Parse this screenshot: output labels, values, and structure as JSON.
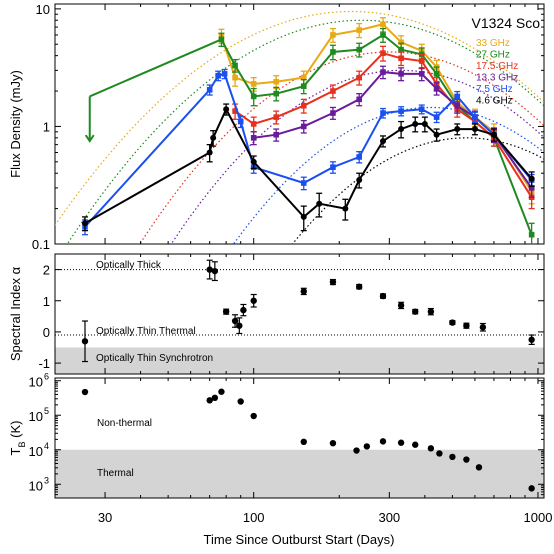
{
  "colors": {
    "33 GHz": "#e8a913",
    "27 GHz": "#1f8a1f",
    "17.5 GHz": "#e8301c",
    "13.3 GHz": "#6a1b9a",
    "7.5 GHz": "#1a4ff0",
    "4.6 GHz": "#000000",
    "shade": "#d4d4d4"
  },
  "chart_data": [
    {
      "type": "line",
      "title": "V1324 Sco",
      "ylabel": "Flux Density (mJy)",
      "xscale": "log",
      "yscale": "log",
      "xlim": [
        20,
        1050
      ],
      "ylim": [
        0.1,
        11
      ],
      "yticks": [
        0.1,
        1,
        10
      ],
      "ytick_labels": [
        "0.1",
        "1",
        "10"
      ],
      "legend_position": "top-right",
      "arrow": {
        "label": "",
        "x": 26.5,
        "y_from": 1.8,
        "y_to": 0.75,
        "series": "27 GHz"
      },
      "series": [
        {
          "name": "33 GHz",
          "x": [
            77,
            86,
            100,
            120,
            150,
            190,
            235,
            285,
            330,
            390,
            440,
            520,
            600,
            700,
            950
          ],
          "y": [
            5.9,
            2.6,
            2.3,
            2.4,
            2.6,
            6.0,
            6.6,
            7.4,
            5.2,
            4.4,
            3.2,
            1.6,
            1.2,
            0.9,
            0.28
          ],
          "err": [
            0.8,
            0.4,
            0.3,
            0.3,
            0.35,
            0.8,
            0.9,
            1.0,
            0.7,
            0.6,
            0.45,
            0.25,
            0.2,
            0.15,
            0.06
          ]
        },
        {
          "name": "27 GHz",
          "x": [
            26.5,
            77,
            86,
            100,
            120,
            150,
            190,
            235,
            285,
            330,
            390,
            440,
            520,
            600,
            700,
            950
          ],
          "y": [
            1.8,
            5.5,
            3.3,
            1.8,
            1.9,
            2.2,
            4.3,
            4.5,
            6.0,
            4.5,
            4.1,
            2.8,
            1.5,
            1.1,
            0.8,
            0.12
          ],
          "err": [
            0,
            0.7,
            0.4,
            0.3,
            0.25,
            0.3,
            0.6,
            0.6,
            0.8,
            0.6,
            0.55,
            0.4,
            0.2,
            0.15,
            0.12,
            0.03
          ]
        },
        {
          "name": "17.5 GHz",
          "x": [
            86,
            100,
            120,
            150,
            190,
            235,
            285,
            330,
            390,
            440,
            520,
            600,
            700,
            950
          ],
          "y": [
            1.35,
            1.05,
            1.2,
            1.5,
            2.0,
            2.6,
            4.2,
            3.8,
            3.6,
            2.3,
            1.4,
            1.1,
            0.8,
            0.25
          ],
          "err": [
            0.2,
            0.15,
            0.15,
            0.2,
            0.25,
            0.35,
            0.6,
            0.5,
            0.5,
            0.3,
            0.2,
            0.15,
            0.12,
            0.05
          ]
        },
        {
          "name": "13.3 GHz",
          "x": [
            100,
            120,
            150,
            190,
            235,
            285,
            330,
            390,
            440,
            520,
            600,
            700,
            950
          ],
          "y": [
            0.8,
            0.85,
            1.0,
            1.3,
            1.7,
            2.9,
            2.8,
            2.8,
            2.1,
            1.5,
            1.2,
            0.85,
            0.3
          ],
          "err": [
            0.1,
            0.1,
            0.12,
            0.15,
            0.2,
            0.35,
            0.35,
            0.35,
            0.25,
            0.2,
            0.15,
            0.12,
            0.05
          ]
        },
        {
          "name": "7.5 GHz",
          "x": [
            25.5,
            70,
            75,
            79,
            90,
            100,
            150,
            190,
            235,
            285,
            330,
            390,
            440,
            520,
            600,
            700,
            950
          ],
          "y": [
            0.14,
            2.05,
            2.7,
            2.8,
            1.1,
            0.45,
            0.33,
            0.45,
            0.55,
            1.3,
            1.35,
            1.4,
            1.2,
            1.8,
            1.2,
            0.85,
            0.35
          ],
          "err": [
            0.02,
            0.2,
            0.25,
            0.25,
            0.12,
            0.05,
            0.04,
            0.05,
            0.06,
            0.12,
            0.12,
            0.12,
            0.12,
            0.18,
            0.12,
            0.1,
            0.04
          ]
        },
        {
          "name": "4.6 GHz",
          "x": [
            25.5,
            70,
            72,
            80,
            100,
            150,
            170,
            210,
            235,
            285,
            330,
            370,
            400,
            440,
            520,
            600,
            700,
            950
          ],
          "y": [
            0.15,
            0.6,
            0.8,
            1.4,
            0.5,
            0.17,
            0.22,
            0.2,
            0.35,
            0.75,
            0.95,
            1.05,
            1.05,
            0.85,
            0.95,
            0.95,
            0.85,
            0.36
          ],
          "err": [
            0.02,
            0.1,
            0.12,
            0.15,
            0.06,
            0.04,
            0.05,
            0.04,
            0.05,
            0.08,
            0.15,
            0.15,
            0.15,
            0.1,
            0.1,
            0.1,
            0.1,
            0.05
          ]
        }
      ]
    },
    {
      "type": "scatter",
      "ylabel": "Spectral Index α",
      "xscale": "log",
      "xlim": [
        20,
        1050
      ],
      "ylim": [
        -1.35,
        2.5
      ],
      "yticks": [
        -1,
        0,
        1,
        2
      ],
      "ytick_labels": [
        "-1",
        "0",
        "1",
        "2"
      ],
      "annotations": [
        "Optically Thick",
        "Optically Thin Thermal",
        "Optically Thin Synchrotron"
      ],
      "reference_lines": [
        2,
        -0.1
      ],
      "shaded_band": [
        -1.35,
        -0.5
      ],
      "x": [
        25.5,
        70,
        73,
        80,
        86,
        89,
        92,
        100,
        150,
        190,
        235,
        285,
        330,
        370,
        420,
        500,
        560,
        640,
        950
      ],
      "y": [
        -0.3,
        2.0,
        1.95,
        0.65,
        0.35,
        0.2,
        0.7,
        1.0,
        1.3,
        1.6,
        1.45,
        1.15,
        0.85,
        0.65,
        0.65,
        0.3,
        0.2,
        0.15,
        -0.25
      ],
      "err": [
        0.65,
        0.3,
        0.3,
        0.08,
        0.2,
        0.25,
        0.18,
        0.2,
        0.1,
        0.08,
        0.07,
        0.07,
        0.1,
        0.07,
        0.1,
        0.06,
        0.08,
        0.12,
        0.15
      ]
    },
    {
      "type": "scatter",
      "ylabel": "T_B (K)",
      "xlabel": "Time Since Outburst Start (Days)",
      "xscale": "log",
      "yscale": "log",
      "xlim": [
        20,
        1050
      ],
      "ylim": [
        400,
        1200000
      ],
      "yticks": [
        1000,
        10000,
        100000,
        1000000
      ],
      "ytick_labels": [
        "10",
        "10",
        "10",
        "10"
      ],
      "ytick_exponents": [
        "3",
        "4",
        "5",
        "6"
      ],
      "xticks": [
        30,
        100,
        300,
        1000
      ],
      "xtick_labels": [
        "30",
        "100",
        "300",
        "1000"
      ],
      "annotations": [
        "Non-thermal",
        "Thermal"
      ],
      "shaded_band": [
        400,
        10000
      ],
      "x": [
        25.5,
        70,
        73,
        77,
        90,
        100,
        150,
        190,
        230,
        250,
        285,
        330,
        370,
        420,
        450,
        500,
        560,
        620,
        950
      ],
      "y": [
        470000,
        270000,
        320000,
        480000,
        250000,
        95000,
        17000,
        15500,
        9500,
        12500,
        17500,
        16000,
        14000,
        11000,
        7800,
        6200,
        5200,
        3100,
        760
      ]
    }
  ]
}
